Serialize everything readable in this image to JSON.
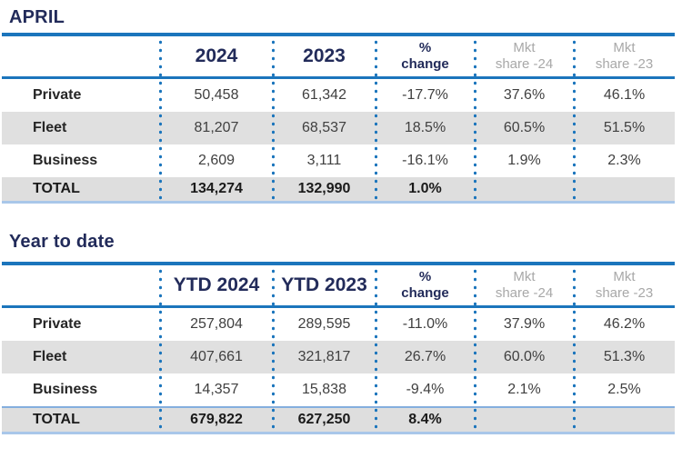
{
  "colors": {
    "accent_blue": "#1b75bc",
    "navy_text": "#222b5a",
    "light_blue_border": "#a9c7e9",
    "gray_header_text": "#a8a8a8",
    "gray_row_bg": "#e0e0e0",
    "data_text": "#404040"
  },
  "tables": [
    {
      "title": "APRIL",
      "headers": {
        "year1": "2024",
        "year2": "2023",
        "change1": "%",
        "change2": "change",
        "s24a": "Mkt",
        "s24b": "share -24",
        "s23a": "Mkt",
        "s23b": "share -23"
      },
      "rows": [
        {
          "label": "Private",
          "y1": "50,458",
          "y2": "61,342",
          "change": "-17.7%",
          "s24": "37.6%",
          "s23": "46.1%"
        },
        {
          "label": "Fleet",
          "y1": "81,207",
          "y2": "68,537",
          "change": "18.5%",
          "s24": "60.5%",
          "s23": "51.5%"
        },
        {
          "label": "Business",
          "y1": "2,609",
          "y2": "3,111",
          "change": "-16.1%",
          "s24": "1.9%",
          "s23": "2.3%"
        },
        {
          "label": "TOTAL",
          "y1": "134,274",
          "y2": "132,990",
          "change": "1.0%",
          "s24": "",
          "s23": ""
        }
      ]
    },
    {
      "title": "Year to date",
      "headers": {
        "year1": "YTD 2024",
        "year2": "YTD 2023",
        "change1": "%",
        "change2": "change",
        "s24a": "Mkt",
        "s24b": "share -24",
        "s23a": "Mkt",
        "s23b": "share -23"
      },
      "rows": [
        {
          "label": "Private",
          "y1": "257,804",
          "y2": "289,595",
          "change": "-11.0%",
          "s24": "37.9%",
          "s23": "46.2%"
        },
        {
          "label": "Fleet",
          "y1": "407,661",
          "y2": "321,817",
          "change": "26.7%",
          "s24": "60.0%",
          "s23": "51.3%"
        },
        {
          "label": "Business",
          "y1": "14,357",
          "y2": "15,838",
          "change": "-9.4%",
          "s24": "2.1%",
          "s23": "2.5%"
        },
        {
          "label": "TOTAL",
          "y1": "679,822",
          "y2": "627,250",
          "change": "8.4%",
          "s24": "",
          "s23": ""
        }
      ]
    }
  ]
}
